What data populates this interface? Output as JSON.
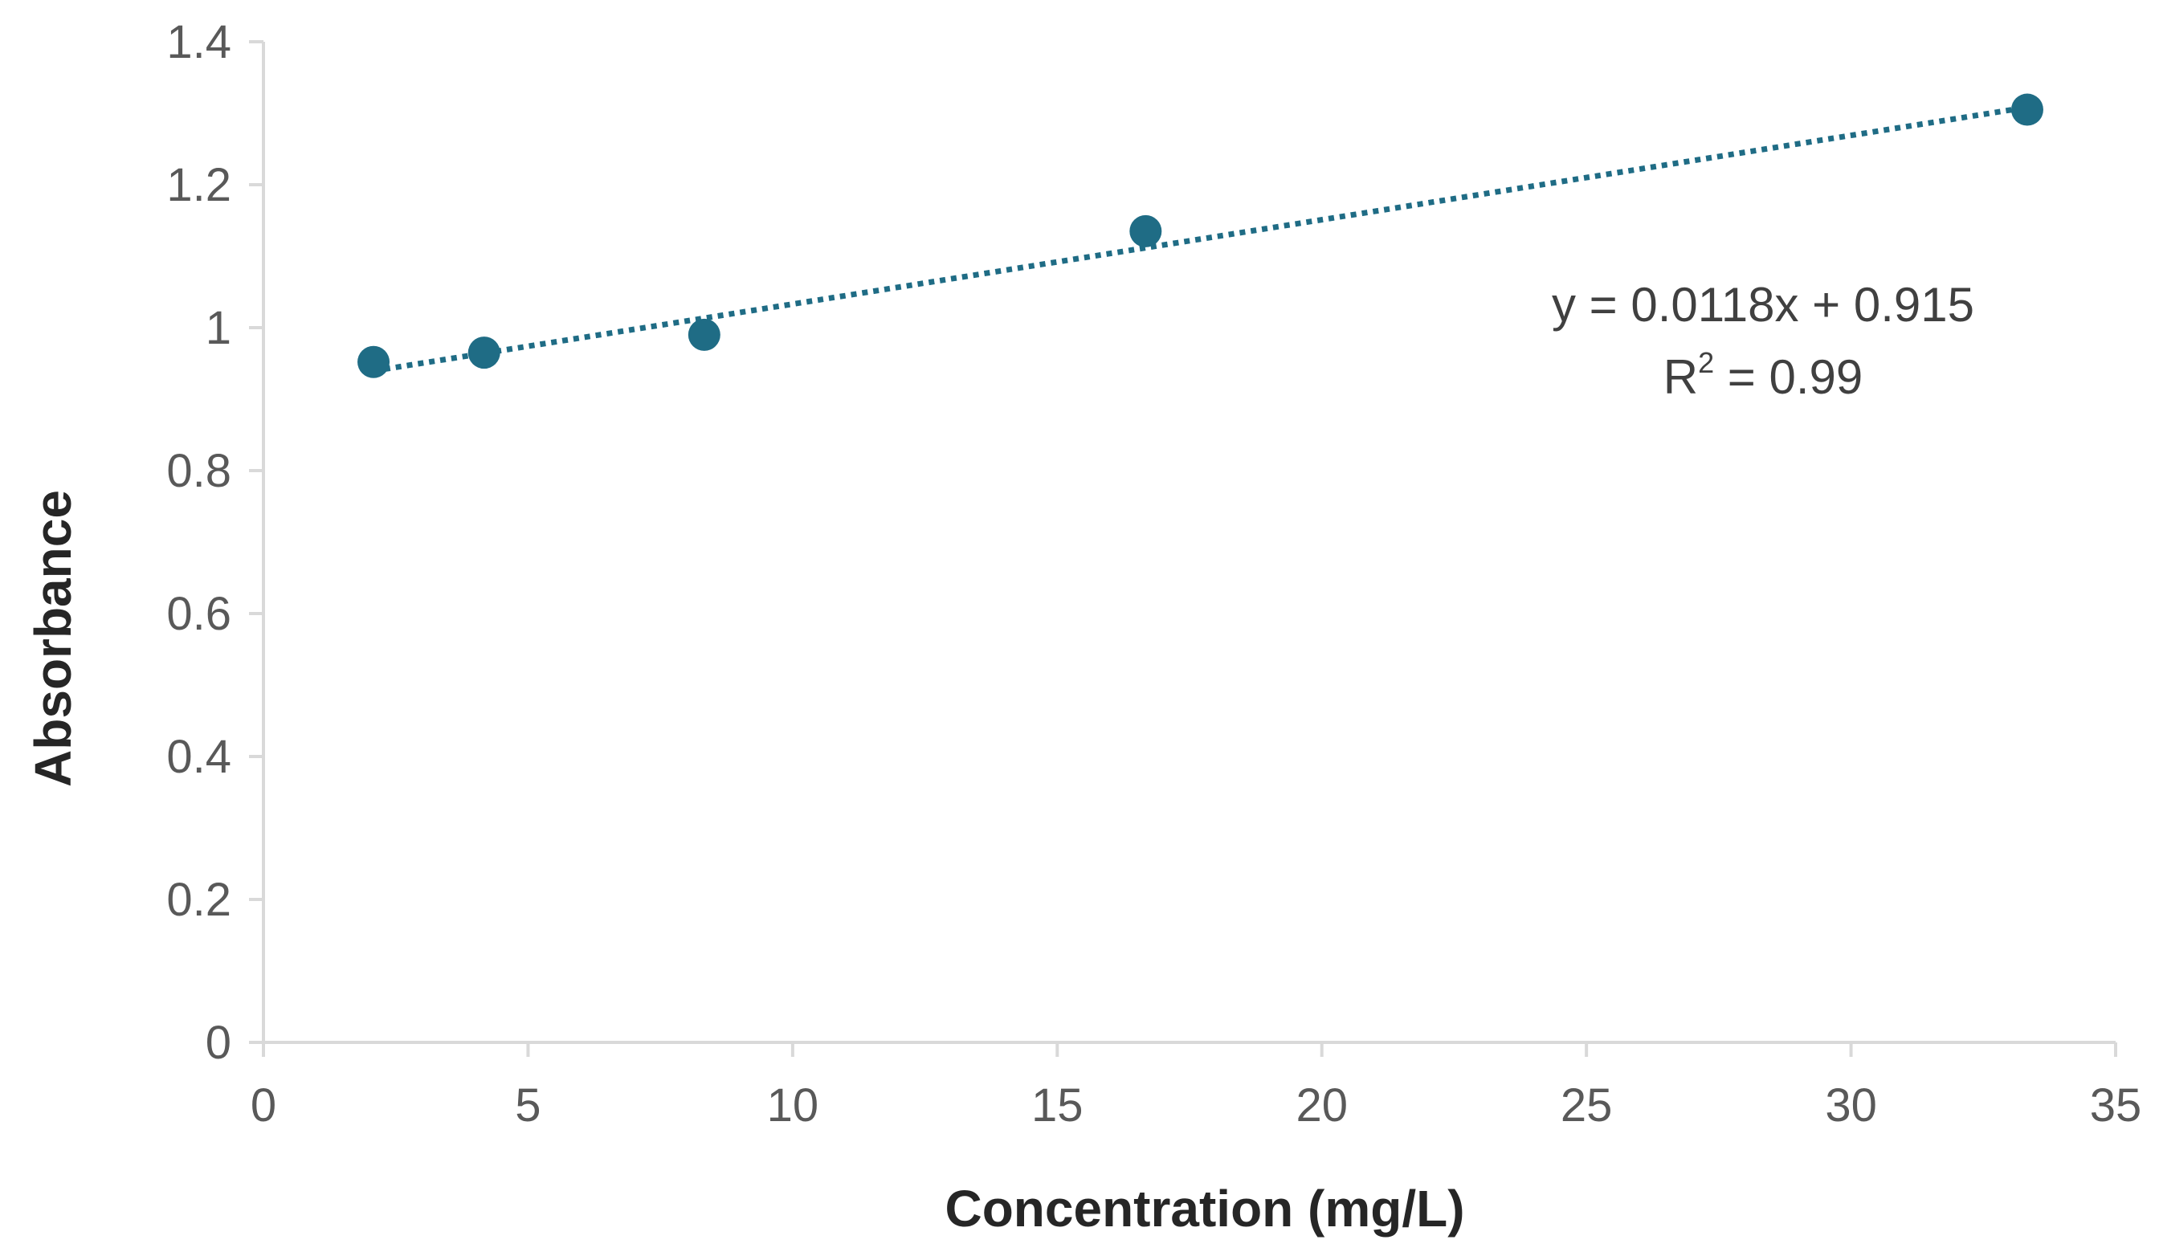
{
  "chart_data": {
    "type": "scatter",
    "xlabel": "Concentration (mg/L)",
    "ylabel": "Absorbance",
    "xlim": [
      0,
      35
    ],
    "ylim": [
      0,
      1.4
    ],
    "x_ticks": [
      0,
      5,
      10,
      15,
      20,
      25,
      30,
      35
    ],
    "x_tick_labels": [
      "0",
      "5",
      "10",
      "15",
      "20",
      "25",
      "30",
      "35"
    ],
    "y_ticks": [
      0,
      0.2,
      0.4,
      0.6,
      0.8,
      1,
      1.2,
      1.4
    ],
    "y_tick_labels": [
      "0",
      "0.2",
      "0.4",
      "0.6",
      "0.8",
      "1",
      "1.2",
      "1.4"
    ],
    "grid": false,
    "legend": "none",
    "series": [
      {
        "x": [
          2.08,
          4.17,
          8.33,
          16.67,
          33.33
        ],
        "y": [
          0.952,
          0.965,
          0.99,
          1.135,
          1.305
        ],
        "color": "#1F6C85"
      }
    ],
    "trendline": {
      "type": "linear",
      "style": "dotted",
      "slope": 0.0118,
      "intercept": 0.915,
      "x_range": [
        2.08,
        33.33
      ],
      "color": "#1F6C85",
      "equation_text": "y = 0.0118x + 0.915",
      "r2_prefix": "R",
      "r2_superscript": "2",
      "r2_suffix": " = 0.99"
    }
  }
}
